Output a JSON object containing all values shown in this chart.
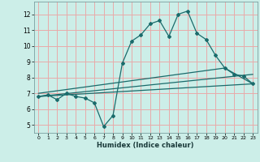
{
  "xlabel": "Humidex (Indice chaleur)",
  "xlim": [
    -0.5,
    23.5
  ],
  "ylim": [
    4.5,
    12.8
  ],
  "xticks": [
    0,
    1,
    2,
    3,
    4,
    5,
    6,
    7,
    8,
    9,
    10,
    11,
    12,
    13,
    14,
    15,
    16,
    17,
    18,
    19,
    20,
    21,
    22,
    23
  ],
  "yticks": [
    5,
    6,
    7,
    8,
    9,
    10,
    11,
    12
  ],
  "bg_color": "#cceee8",
  "grid_color": "#e8aaaa",
  "line_color": "#1a6b6b",
  "line1_x": [
    0,
    1,
    2,
    3,
    4,
    5,
    6,
    7,
    8,
    9,
    10,
    11,
    12,
    13,
    14,
    15,
    16,
    17,
    18,
    19,
    20,
    21,
    22,
    23
  ],
  "line1_y": [
    6.8,
    6.9,
    6.6,
    7.0,
    6.8,
    6.7,
    6.4,
    4.9,
    5.6,
    8.9,
    10.3,
    10.7,
    11.4,
    11.6,
    10.6,
    12.0,
    12.2,
    10.8,
    10.4,
    9.4,
    8.6,
    8.2,
    8.1,
    7.6
  ],
  "line2_x": [
    0,
    23
  ],
  "line2_y": [
    6.8,
    7.6
  ],
  "line3_x": [
    0,
    20,
    23
  ],
  "line3_y": [
    7.0,
    8.6,
    7.6
  ],
  "line4_x": [
    0,
    23
  ],
  "line4_y": [
    6.8,
    8.2
  ]
}
